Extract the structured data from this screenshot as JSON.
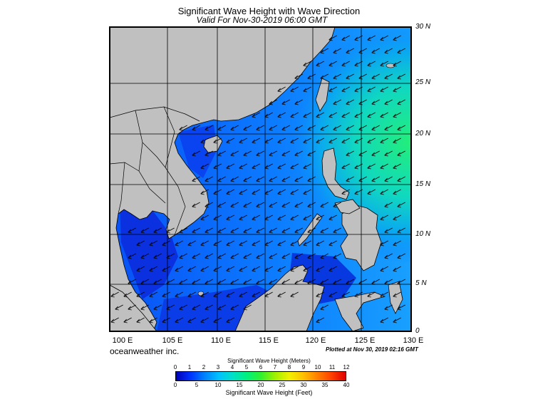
{
  "title": "Significant Wave Height with Wave Direction",
  "subtitle": "Valid For Nov-30-2019 06:00 GMT",
  "lat_labels": [
    "30 N",
    "25 N",
    "20 N",
    "15 N",
    "10 N",
    "5 N",
    "0"
  ],
  "lon_labels": [
    "100 E",
    "105 E",
    "110 E",
    "115 E",
    "120 E",
    "125 E",
    "130 E"
  ],
  "brand": "oceanweather inc.",
  "plotted": "Plotted at Nov 30, 2019 02:16 GMT",
  "colorbar": {
    "meters_title": "Significant Wave Height (Meters)",
    "feet_title": "Significant Wave Height (Feet)",
    "meters_ticks": [
      "0",
      "1",
      "2",
      "3",
      "4",
      "5",
      "6",
      "7",
      "8",
      "9",
      "10",
      "11",
      "12"
    ],
    "feet_ticks": [
      "0",
      "5",
      "10",
      "15",
      "20",
      "25",
      "30",
      "35",
      "40"
    ],
    "colors": [
      "#0000b4",
      "#0030ff",
      "#0080ff",
      "#00c0ff",
      "#00e0c8",
      "#00f080",
      "#30f030",
      "#a0f000",
      "#f0f000",
      "#ffc000",
      "#ff8000",
      "#ff4000",
      "#e00000"
    ]
  },
  "colors": {
    "land": "#c0c0c0",
    "deep_sea": "#0a3cf0",
    "sea": "#1a6cff",
    "high_wave": "#22e8a0"
  }
}
